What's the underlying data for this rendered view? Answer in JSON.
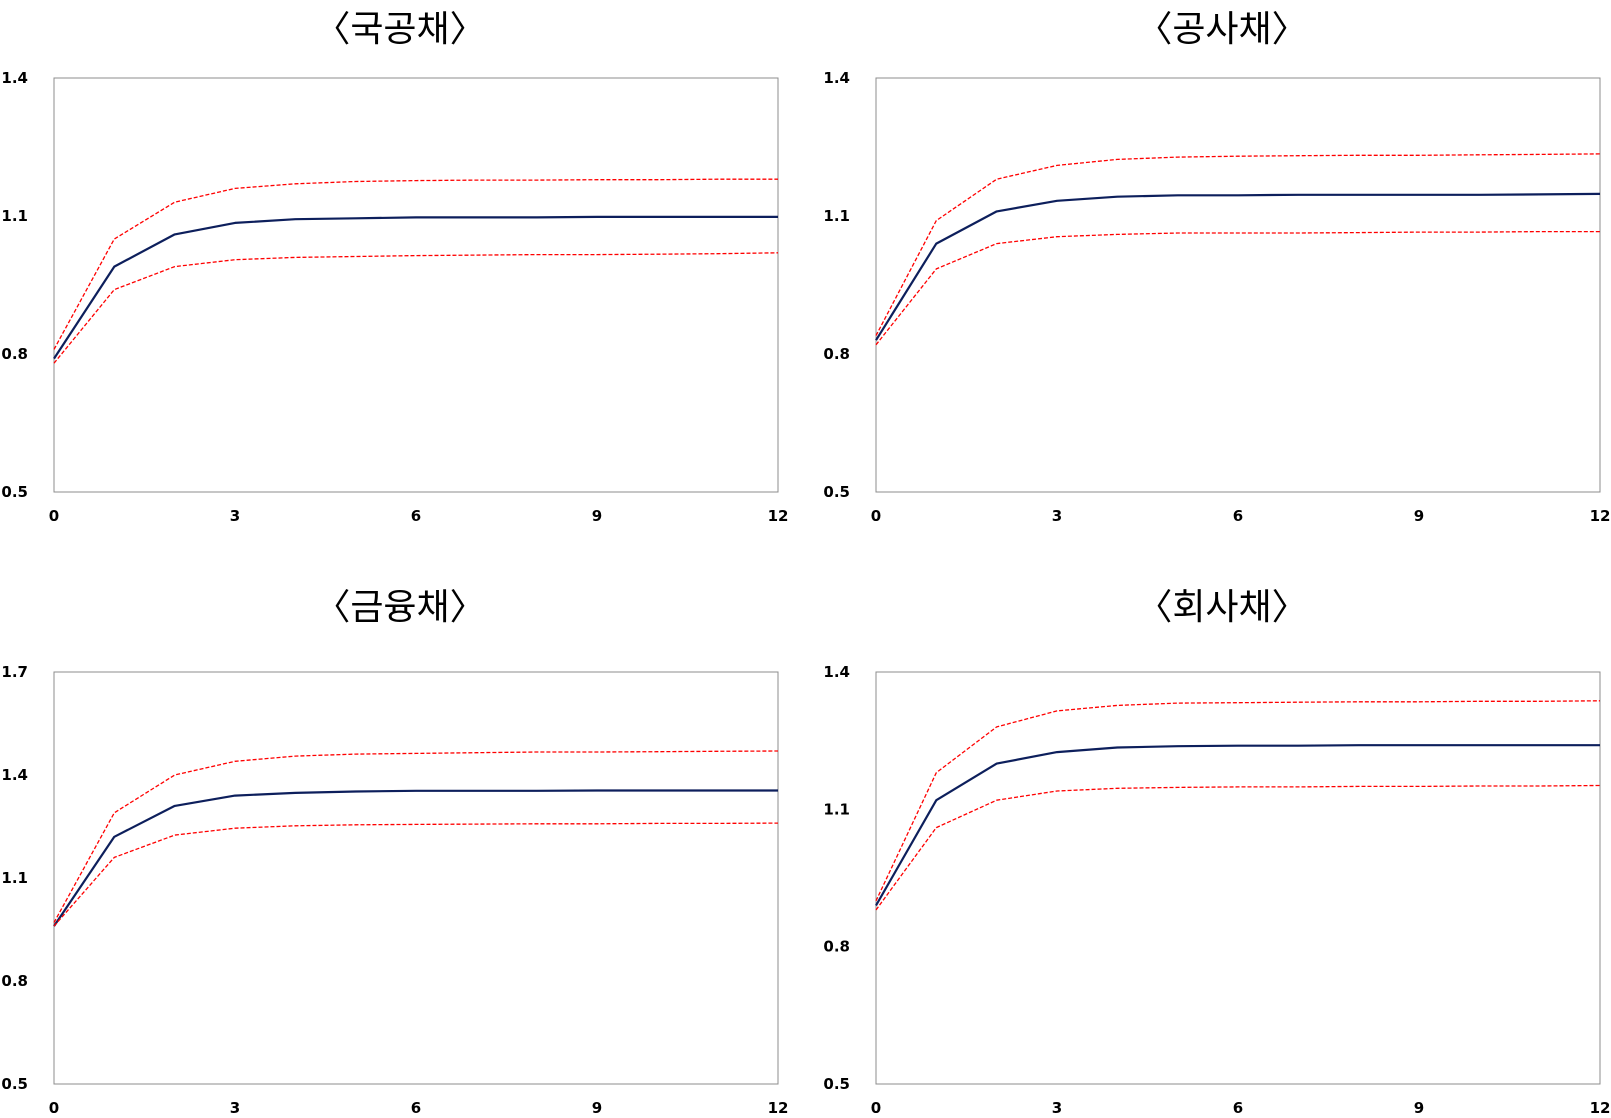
{
  "chart_data": [
    {
      "type": "line",
      "title": "〈국공채〉",
      "x": [
        0,
        1,
        2,
        3,
        4,
        5,
        6,
        7,
        8,
        9,
        10,
        11,
        12
      ],
      "xticks": [
        0,
        3,
        6,
        9,
        12
      ],
      "yticks": [
        0.5,
        0.8,
        1.1,
        1.4
      ],
      "xlim": [
        0,
        12
      ],
      "ylim": [
        0.5,
        1.4
      ],
      "grid": false,
      "series": [
        {
          "role": "upper",
          "color": "#ff0000",
          "style": "dashed",
          "values": [
            0.81,
            1.05,
            1.13,
            1.16,
            1.17,
            1.175,
            1.177,
            1.178,
            1.178,
            1.179,
            1.179,
            1.18,
            1.18
          ]
        },
        {
          "role": "center",
          "color": "#0d1f5c",
          "style": "solid",
          "values": [
            0.79,
            0.99,
            1.06,
            1.085,
            1.093,
            1.095,
            1.097,
            1.097,
            1.097,
            1.098,
            1.098,
            1.098,
            1.098
          ]
        },
        {
          "role": "lower",
          "color": "#ff0000",
          "style": "dashed",
          "values": [
            0.78,
            0.94,
            0.99,
            1.005,
            1.01,
            1.012,
            1.014,
            1.015,
            1.016,
            1.016,
            1.017,
            1.018,
            1.02
          ]
        }
      ]
    },
    {
      "type": "line",
      "title": "〈공사채〉",
      "x": [
        0,
        1,
        2,
        3,
        4,
        5,
        6,
        7,
        8,
        9,
        10,
        11,
        12
      ],
      "xticks": [
        0,
        3,
        6,
        9,
        12
      ],
      "yticks": [
        0.5,
        0.8,
        1.1,
        1.4
      ],
      "xlim": [
        0,
        12
      ],
      "ylim": [
        0.5,
        1.4
      ],
      "grid": false,
      "series": [
        {
          "role": "upper",
          "color": "#ff0000",
          "style": "dashed",
          "values": [
            0.84,
            1.09,
            1.18,
            1.21,
            1.223,
            1.228,
            1.23,
            1.231,
            1.232,
            1.232,
            1.233,
            1.234,
            1.235
          ]
        },
        {
          "role": "center",
          "color": "#0d1f5c",
          "style": "solid",
          "values": [
            0.83,
            1.04,
            1.11,
            1.133,
            1.142,
            1.145,
            1.145,
            1.146,
            1.146,
            1.146,
            1.146,
            1.147,
            1.148
          ]
        },
        {
          "role": "lower",
          "color": "#ff0000",
          "style": "dashed",
          "values": [
            0.82,
            0.985,
            1.04,
            1.055,
            1.06,
            1.063,
            1.063,
            1.063,
            1.064,
            1.065,
            1.065,
            1.066,
            1.066
          ]
        }
      ]
    },
    {
      "type": "line",
      "title": "〈금융채〉",
      "x": [
        0,
        1,
        2,
        3,
        4,
        5,
        6,
        7,
        8,
        9,
        10,
        11,
        12
      ],
      "xticks": [
        0,
        3,
        6,
        9,
        12
      ],
      "yticks": [
        0.5,
        0.8,
        1.1,
        1.4,
        1.7
      ],
      "xlim": [
        0,
        12
      ],
      "ylim": [
        0.5,
        1.7
      ],
      "grid": false,
      "series": [
        {
          "role": "upper",
          "color": "#ff0000",
          "style": "dashed",
          "values": [
            0.97,
            1.29,
            1.4,
            1.44,
            1.455,
            1.461,
            1.463,
            1.465,
            1.467,
            1.467,
            1.468,
            1.469,
            1.47
          ]
        },
        {
          "role": "center",
          "color": "#0d1f5c",
          "style": "solid",
          "values": [
            0.96,
            1.22,
            1.31,
            1.34,
            1.348,
            1.352,
            1.354,
            1.354,
            1.354,
            1.355,
            1.355,
            1.355,
            1.355
          ]
        },
        {
          "role": "lower",
          "color": "#ff0000",
          "style": "dashed",
          "values": [
            0.96,
            1.16,
            1.225,
            1.245,
            1.252,
            1.255,
            1.256,
            1.257,
            1.258,
            1.258,
            1.259,
            1.259,
            1.26
          ]
        }
      ]
    },
    {
      "type": "line",
      "title": "〈회사채〉",
      "x": [
        0,
        1,
        2,
        3,
        4,
        5,
        6,
        7,
        8,
        9,
        10,
        11,
        12
      ],
      "xticks": [
        0,
        3,
        6,
        9,
        12
      ],
      "yticks": [
        0.5,
        0.8,
        1.1,
        1.4
      ],
      "xlim": [
        0,
        12
      ],
      "ylim": [
        0.5,
        1.4
      ],
      "grid": false,
      "series": [
        {
          "role": "upper",
          "color": "#ff0000",
          "style": "dashed",
          "values": [
            0.9,
            1.18,
            1.28,
            1.315,
            1.327,
            1.332,
            1.333,
            1.334,
            1.335,
            1.335,
            1.336,
            1.336,
            1.337
          ]
        },
        {
          "role": "center",
          "color": "#0d1f5c",
          "style": "solid",
          "values": [
            0.89,
            1.12,
            1.2,
            1.225,
            1.235,
            1.238,
            1.239,
            1.239,
            1.24,
            1.24,
            1.24,
            1.24,
            1.24
          ]
        },
        {
          "role": "lower",
          "color": "#ff0000",
          "style": "dashed",
          "values": [
            0.88,
            1.06,
            1.12,
            1.14,
            1.146,
            1.148,
            1.149,
            1.149,
            1.15,
            1.15,
            1.151,
            1.151,
            1.152
          ]
        }
      ]
    }
  ]
}
